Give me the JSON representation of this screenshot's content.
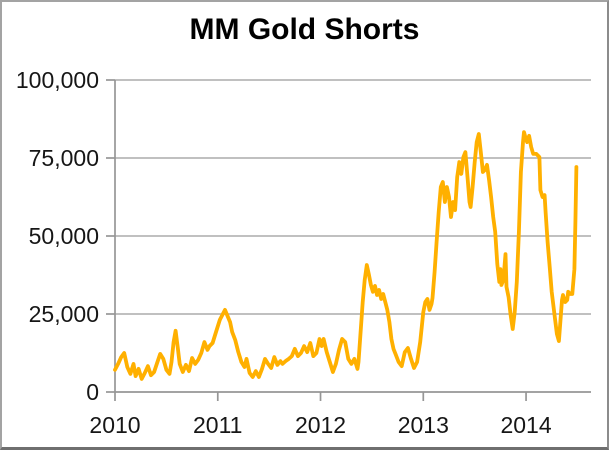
{
  "window": {
    "background": "#ffffff",
    "frame_border_color": "#8c8c8c"
  },
  "chart_data": {
    "type": "line",
    "title": "MM Gold Shorts",
    "xlabel": "",
    "ylabel": "",
    "legend": "none",
    "grid": "horizontal",
    "xlim": [
      2010.0,
      2014.632
    ],
    "ylim": [
      0,
      100000
    ],
    "x_ticks": [
      2010,
      2011,
      2012,
      2013,
      2014
    ],
    "x_tick_labels": [
      "2010",
      "2011",
      "2012",
      "2013",
      "2014"
    ],
    "y_ticks": [
      0,
      25000,
      50000,
      75000,
      100000
    ],
    "y_tick_labels": [
      "0",
      "25,000",
      "50,000",
      "75,000",
      "100,000"
    ],
    "grid_color": "#b7b7b7",
    "axis_color": "#969696",
    "title_color": "#000000",
    "tick_label_color": "#161616",
    "series": [
      {
        "name": "MM Gold Shorts",
        "color": "#FFB000",
        "stroke_width": 3.8,
        "points": [
          [
            2010.0,
            7100
          ],
          [
            2010.03,
            9000
          ],
          [
            2010.06,
            11200
          ],
          [
            2010.09,
            12500
          ],
          [
            2010.12,
            8000
          ],
          [
            2010.15,
            5800
          ],
          [
            2010.18,
            9000
          ],
          [
            2010.2,
            5100
          ],
          [
            2010.23,
            7400
          ],
          [
            2010.26,
            4200
          ],
          [
            2010.29,
            6100
          ],
          [
            2010.32,
            8300
          ],
          [
            2010.35,
            5400
          ],
          [
            2010.38,
            6400
          ],
          [
            2010.41,
            9300
          ],
          [
            2010.44,
            12200
          ],
          [
            2010.47,
            10600
          ],
          [
            2010.5,
            7100
          ],
          [
            2010.53,
            5800
          ],
          [
            2010.55,
            9600
          ],
          [
            2010.57,
            16000
          ],
          [
            2010.59,
            19600
          ],
          [
            2010.61,
            14400
          ],
          [
            2010.63,
            9000
          ],
          [
            2010.66,
            6400
          ],
          [
            2010.69,
            8700
          ],
          [
            2010.72,
            6700
          ],
          [
            2010.75,
            10900
          ],
          [
            2010.78,
            9000
          ],
          [
            2010.81,
            10300
          ],
          [
            2010.84,
            12500
          ],
          [
            2010.87,
            16000
          ],
          [
            2010.9,
            13500
          ],
          [
            2010.92,
            14700
          ],
          [
            2010.95,
            15700
          ],
          [
            2010.98,
            18900
          ],
          [
            2011.02,
            23100
          ],
          [
            2011.07,
            26300
          ],
          [
            2011.1,
            24000
          ],
          [
            2011.12,
            22400
          ],
          [
            2011.14,
            19200
          ],
          [
            2011.17,
            16700
          ],
          [
            2011.2,
            12800
          ],
          [
            2011.23,
            9600
          ],
          [
            2011.26,
            8000
          ],
          [
            2011.28,
            10600
          ],
          [
            2011.31,
            6100
          ],
          [
            2011.34,
            4800
          ],
          [
            2011.37,
            6700
          ],
          [
            2011.4,
            4800
          ],
          [
            2011.43,
            7400
          ],
          [
            2011.46,
            10600
          ],
          [
            2011.49,
            9000
          ],
          [
            2011.52,
            7700
          ],
          [
            2011.55,
            11200
          ],
          [
            2011.58,
            8700
          ],
          [
            2011.61,
            9900
          ],
          [
            2011.63,
            9000
          ],
          [
            2011.66,
            9900
          ],
          [
            2011.69,
            10600
          ],
          [
            2011.72,
            11500
          ],
          [
            2011.75,
            13800
          ],
          [
            2011.78,
            11500
          ],
          [
            2011.81,
            12500
          ],
          [
            2011.84,
            14700
          ],
          [
            2011.87,
            12800
          ],
          [
            2011.9,
            15700
          ],
          [
            2011.93,
            11500
          ],
          [
            2011.96,
            12500
          ],
          [
            2011.99,
            17000
          ],
          [
            2012.01,
            14700
          ],
          [
            2012.03,
            17000
          ],
          [
            2012.06,
            12800
          ],
          [
            2012.09,
            9600
          ],
          [
            2012.12,
            6400
          ],
          [
            2012.15,
            9000
          ],
          [
            2012.18,
            13500
          ],
          [
            2012.21,
            17000
          ],
          [
            2012.24,
            16000
          ],
          [
            2012.27,
            10600
          ],
          [
            2012.3,
            9000
          ],
          [
            2012.33,
            10600
          ],
          [
            2012.36,
            7400
          ],
          [
            2012.37,
            9600
          ],
          [
            2012.39,
            19200
          ],
          [
            2012.41,
            28800
          ],
          [
            2012.43,
            35900
          ],
          [
            2012.45,
            40700
          ],
          [
            2012.47,
            37800
          ],
          [
            2012.49,
            34300
          ],
          [
            2012.51,
            32100
          ],
          [
            2012.53,
            34000
          ],
          [
            2012.55,
            31100
          ],
          [
            2012.57,
            32700
          ],
          [
            2012.59,
            29800
          ],
          [
            2012.61,
            31400
          ],
          [
            2012.63,
            28800
          ],
          [
            2012.65,
            26300
          ],
          [
            2012.67,
            22400
          ],
          [
            2012.69,
            17000
          ],
          [
            2012.71,
            13800
          ],
          [
            2012.73,
            12200
          ],
          [
            2012.76,
            9600
          ],
          [
            2012.79,
            8300
          ],
          [
            2012.82,
            12800
          ],
          [
            2012.85,
            14100
          ],
          [
            2012.88,
            10600
          ],
          [
            2012.91,
            7700
          ],
          [
            2012.94,
            9600
          ],
          [
            2012.97,
            16000
          ],
          [
            2013.0,
            25600
          ],
          [
            2013.02,
            28800
          ],
          [
            2013.04,
            29800
          ],
          [
            2013.06,
            26300
          ],
          [
            2013.08,
            28200
          ],
          [
            2013.09,
            30100
          ],
          [
            2013.11,
            38500
          ],
          [
            2013.13,
            48100
          ],
          [
            2013.15,
            57700
          ],
          [
            2013.17,
            65700
          ],
          [
            2013.19,
            67300
          ],
          [
            2013.21,
            60900
          ],
          [
            2013.23,
            65700
          ],
          [
            2013.25,
            62500
          ],
          [
            2013.27,
            56100
          ],
          [
            2013.29,
            60900
          ],
          [
            2013.31,
            58300
          ],
          [
            2013.33,
            68900
          ],
          [
            2013.35,
            73700
          ],
          [
            2013.37,
            69900
          ],
          [
            2013.39,
            75300
          ],
          [
            2013.41,
            76900
          ],
          [
            2013.43,
            68900
          ],
          [
            2013.45,
            60900
          ],
          [
            2013.46,
            59300
          ],
          [
            2013.48,
            65700
          ],
          [
            2013.5,
            73700
          ],
          [
            2013.52,
            80100
          ],
          [
            2013.54,
            82700
          ],
          [
            2013.56,
            76900
          ],
          [
            2013.58,
            70500
          ],
          [
            2013.6,
            71200
          ],
          [
            2013.62,
            72800
          ],
          [
            2013.64,
            67900
          ],
          [
            2013.66,
            62500
          ],
          [
            2013.68,
            56100
          ],
          [
            2013.7,
            51300
          ],
          [
            2013.72,
            41000
          ],
          [
            2013.74,
            35300
          ],
          [
            2013.75,
            39400
          ],
          [
            2013.76,
            34300
          ],
          [
            2013.78,
            35900
          ],
          [
            2013.8,
            44200
          ],
          [
            2013.81,
            33700
          ],
          [
            2013.83,
            30400
          ],
          [
            2013.85,
            24700
          ],
          [
            2013.87,
            20200
          ],
          [
            2013.89,
            25600
          ],
          [
            2013.91,
            35300
          ],
          [
            2013.93,
            51300
          ],
          [
            2013.95,
            70500
          ],
          [
            2013.97,
            80100
          ],
          [
            2013.98,
            83300
          ],
          [
            2013.99,
            82100
          ],
          [
            2014.01,
            80100
          ],
          [
            2014.03,
            82100
          ],
          [
            2014.05,
            78500
          ],
          [
            2014.07,
            76300
          ],
          [
            2014.1,
            76300
          ],
          [
            2014.13,
            75300
          ],
          [
            2014.14,
            64700
          ],
          [
            2014.16,
            62500
          ],
          [
            2014.18,
            63100
          ],
          [
            2014.19,
            57700
          ],
          [
            2014.21,
            48100
          ],
          [
            2014.23,
            40100
          ],
          [
            2014.25,
            32100
          ],
          [
            2014.28,
            24000
          ],
          [
            2014.3,
            18600
          ],
          [
            2014.32,
            16300
          ],
          [
            2014.35,
            29500
          ],
          [
            2014.36,
            31100
          ],
          [
            2014.38,
            28800
          ],
          [
            2014.4,
            29500
          ],
          [
            2014.41,
            32100
          ],
          [
            2014.43,
            31400
          ],
          [
            2014.45,
            31400
          ],
          [
            2014.47,
            39400
          ],
          [
            2014.48,
            54500
          ],
          [
            2014.49,
            72100
          ]
        ]
      }
    ]
  }
}
